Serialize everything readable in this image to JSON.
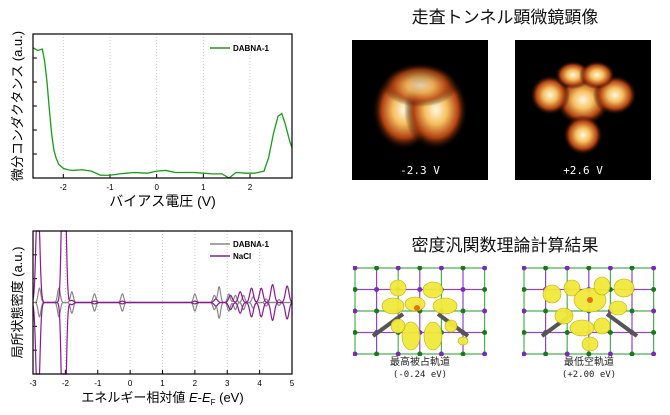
{
  "chart_data": [
    {
      "type": "line",
      "xlabel": "バイアス電圧 (V)",
      "ylabel": "微分コンダクタンス (a.u.)",
      "xlim": [
        -2.65,
        2.9
      ],
      "ylim": [
        0,
        1.05
      ],
      "xticks": [
        -2,
        -1,
        0,
        1,
        2
      ],
      "grid": "vertical dotted",
      "legend": "top-right",
      "series": [
        {
          "name": "DABNA-1",
          "color": "#1a9a1a",
          "x": [
            -2.65,
            -2.55,
            -2.45,
            -2.4,
            -2.35,
            -2.3,
            -2.25,
            -2.2,
            -2.15,
            -2.1,
            -2.0,
            -1.9,
            -1.8,
            -1.6,
            -1.4,
            -1.2,
            -1.0,
            -0.8,
            -0.5,
            -0.2,
            0,
            0.2,
            0.4,
            0.6,
            0.8,
            1.0,
            1.2,
            1.4,
            1.55,
            1.7,
            1.9,
            2.1,
            2.3,
            2.4,
            2.5,
            2.6,
            2.68,
            2.75,
            2.85,
            2.9
          ],
          "y": [
            0.95,
            0.93,
            0.94,
            0.85,
            0.7,
            0.5,
            0.32,
            0.2,
            0.14,
            0.1,
            0.07,
            0.06,
            0.055,
            0.06,
            0.05,
            0.02,
            0.02,
            0.03,
            0.04,
            0.035,
            0.05,
            0.055,
            0.04,
            0.04,
            0.04,
            0.035,
            0.03,
            0.03,
            0.0,
            0.04,
            0.035,
            0.035,
            0.05,
            0.15,
            0.32,
            0.45,
            0.47,
            0.4,
            0.27,
            0.22
          ]
        }
      ]
    },
    {
      "type": "line",
      "xlabel": "エネルギー相対値 E-E_F (eV)",
      "xlabel_parts": [
        "エネルギー相対値 ",
        "E",
        "-",
        "E",
        "F",
        " (eV)"
      ],
      "ylabel": "局所状態密度 (a.u.)",
      "xlim": [
        -3,
        5
      ],
      "ylim": [
        -1,
        1
      ],
      "xticks": [
        -3,
        -2,
        -1,
        0,
        1,
        2,
        3,
        4,
        5
      ],
      "grid": "vertical dotted",
      "legend": "top-right",
      "mirrored": true,
      "series": [
        {
          "name": "DABNA-1",
          "color": "#888888",
          "peaks": [
            [
              -2.8,
              0.2
            ],
            [
              -2.2,
              0.2
            ],
            [
              -1.8,
              0.15
            ],
            [
              -1.1,
              0.12
            ],
            [
              -0.24,
              0.12
            ],
            [
              2.0,
              0.12
            ],
            [
              2.6,
              0.1
            ],
            [
              2.75,
              0.22
            ],
            [
              3.05,
              0.12
            ],
            [
              3.25,
              0.1
            ],
            [
              3.5,
              0.1
            ],
            [
              3.8,
              0.08
            ],
            [
              4.2,
              0.05
            ],
            [
              4.6,
              0.04
            ]
          ]
        },
        {
          "name": "NaCl",
          "color": "#8a1a8f",
          "peaks": [
            [
              -2.85,
              1.6
            ],
            [
              -2.05,
              3.0
            ],
            [
              -1.8,
              0.03
            ],
            [
              -1.1,
              0.02
            ],
            [
              -0.24,
              0.02
            ],
            [
              2.0,
              0.02
            ],
            [
              2.65,
              0.05
            ],
            [
              3.1,
              0.1
            ],
            [
              3.4,
              0.15
            ],
            [
              3.75,
              0.2
            ],
            [
              4.05,
              0.2
            ],
            [
              4.4,
              0.25
            ],
            [
              4.85,
              0.23
            ]
          ]
        }
      ]
    }
  ],
  "stm": {
    "title": "走査トンネル顕微鏡顕像",
    "images": [
      {
        "label": "-2.3 V"
      },
      {
        "label": "+2.6 V"
      }
    ]
  },
  "dft": {
    "title": "密度汎関数理論計算結果",
    "images": [
      {
        "orbital": "最高被占軌道",
        "energy": "(-0.24 eV)"
      },
      {
        "orbital": "最低空軌道",
        "energy": "(+2.00 eV)"
      }
    ]
  },
  "colors": {
    "lattice_green": "#4caf50",
    "lattice_purple": "#8e44c8",
    "orbital": "#f2e93a"
  }
}
